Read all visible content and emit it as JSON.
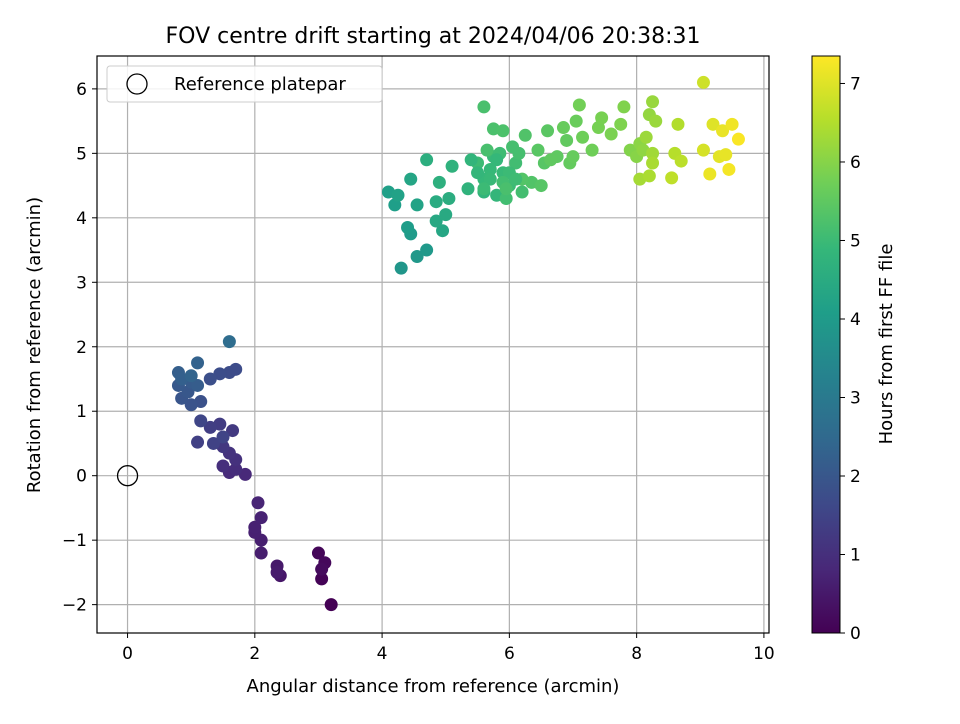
{
  "chart_data": {
    "type": "scatter",
    "title": "FOV centre drift starting at 2024/04/06 20:38:31",
    "xlabel": "Angular distance from reference (arcmin)",
    "ylabel": "Rotation from reference (arcmin)",
    "xlim": [
      -0.48,
      10.08
    ],
    "ylim": [
      -2.44,
      6.51
    ],
    "xticks": [
      0,
      2,
      4,
      6,
      8,
      10
    ],
    "yticks": [
      -2,
      -1,
      0,
      1,
      2,
      3,
      4,
      5,
      6
    ],
    "xtick_labels": [
      "0",
      "2",
      "4",
      "6",
      "8",
      "10"
    ],
    "ytick_labels": [
      "−2",
      "−1",
      "0",
      "1",
      "2",
      "3",
      "4",
      "5",
      "6"
    ],
    "grid": true,
    "legend": {
      "position": "top-left",
      "entries": [
        "Reference platepar"
      ]
    },
    "reference_point": {
      "x": 0,
      "y": 0,
      "label": "Reference platepar"
    },
    "colorbar": {
      "label": "Hours from first FF file",
      "min": 0,
      "max": 7.35,
      "ticks": [
        0,
        1,
        2,
        3,
        4,
        5,
        6,
        7
      ],
      "tick_labels": [
        "0",
        "1",
        "2",
        "3",
        "4",
        "5",
        "6",
        "7"
      ],
      "colormap": "viridis"
    },
    "colors": {
      "viridis": [
        "#440154",
        "#482878",
        "#3e4989",
        "#31688e",
        "#26828e",
        "#1f9e89",
        "#35b779",
        "#6ece58",
        "#b5de2b",
        "#fde725"
      ]
    },
    "series": [
      {
        "columns": [
          "x",
          "y",
          "hours"
        ],
        "points": [
          [
            3.2,
            -2.0,
            0.0
          ],
          [
            3.05,
            -1.6,
            0.05
          ],
          [
            3.0,
            -1.2,
            0.1
          ],
          [
            3.1,
            -1.35,
            0.15
          ],
          [
            3.05,
            -1.45,
            0.2
          ],
          [
            2.4,
            -1.55,
            0.45
          ],
          [
            2.35,
            -1.4,
            0.5
          ],
          [
            2.35,
            -1.5,
            0.55
          ],
          [
            2.1,
            -1.2,
            0.6
          ],
          [
            2.1,
            -1.0,
            0.62
          ],
          [
            2.0,
            -0.88,
            0.65
          ],
          [
            2.0,
            -0.8,
            0.68
          ],
          [
            2.1,
            -0.65,
            0.7
          ],
          [
            2.05,
            -0.42,
            0.75
          ],
          [
            1.85,
            0.02,
            0.85
          ],
          [
            1.6,
            0.05,
            0.9
          ],
          [
            1.7,
            0.1,
            0.95
          ],
          [
            1.5,
            0.15,
            1.0
          ],
          [
            1.7,
            0.25,
            1.05
          ],
          [
            1.6,
            0.35,
            1.1
          ],
          [
            1.5,
            0.45,
            1.2
          ],
          [
            1.65,
            0.7,
            1.25
          ],
          [
            1.45,
            0.8,
            1.3
          ],
          [
            1.3,
            0.75,
            1.35
          ],
          [
            1.1,
            0.52,
            1.4
          ],
          [
            1.35,
            0.5,
            1.45
          ],
          [
            1.5,
            0.6,
            1.5
          ],
          [
            1.15,
            0.85,
            1.55
          ],
          [
            1.6,
            1.6,
            1.7
          ],
          [
            1.7,
            1.65,
            1.72
          ],
          [
            1.45,
            1.58,
            1.75
          ],
          [
            1.3,
            1.5,
            1.78
          ],
          [
            1.15,
            1.15,
            1.85
          ],
          [
            1.0,
            1.1,
            1.9
          ],
          [
            0.85,
            1.2,
            1.95
          ],
          [
            0.95,
            1.3,
            2.0
          ],
          [
            0.8,
            1.4,
            2.05
          ],
          [
            1.0,
            1.45,
            2.1
          ],
          [
            1.1,
            1.4,
            2.15
          ],
          [
            0.8,
            1.6,
            2.2
          ],
          [
            0.85,
            1.5,
            2.25
          ],
          [
            1.1,
            1.75,
            2.3
          ],
          [
            1.0,
            1.55,
            2.35
          ],
          [
            1.6,
            2.08,
            2.6
          ],
          [
            4.3,
            3.22,
            3.85
          ],
          [
            4.55,
            3.4,
            3.9
          ],
          [
            4.7,
            3.5,
            3.95
          ],
          [
            4.45,
            3.75,
            4.0
          ],
          [
            4.4,
            3.85,
            4.05
          ],
          [
            4.2,
            4.2,
            4.1
          ],
          [
            4.1,
            4.4,
            4.15
          ],
          [
            4.25,
            4.35,
            4.2
          ],
          [
            4.55,
            4.2,
            4.25
          ],
          [
            4.45,
            4.6,
            4.3
          ],
          [
            4.95,
            3.8,
            4.35
          ],
          [
            4.85,
            3.95,
            4.4
          ],
          [
            5.0,
            4.05,
            4.45
          ],
          [
            4.85,
            4.25,
            4.5
          ],
          [
            5.05,
            4.3,
            4.55
          ],
          [
            4.7,
            4.9,
            4.6
          ],
          [
            4.9,
            4.55,
            4.65
          ],
          [
            5.1,
            4.8,
            4.7
          ],
          [
            5.35,
            4.45,
            4.75
          ],
          [
            5.6,
            4.4,
            4.8
          ],
          [
            5.8,
            4.35,
            4.85
          ],
          [
            5.6,
            4.6,
            4.9
          ],
          [
            5.7,
            4.75,
            4.92
          ],
          [
            5.9,
            4.7,
            4.95
          ],
          [
            5.75,
            4.95,
            4.98
          ],
          [
            6.0,
            4.5,
            5.0
          ],
          [
            5.5,
            4.85,
            5.02
          ],
          [
            5.85,
            5.0,
            5.05
          ],
          [
            6.1,
            4.85,
            5.08
          ],
          [
            5.95,
            4.3,
            5.1
          ],
          [
            6.2,
            4.4,
            5.12
          ],
          [
            6.05,
            5.1,
            5.15
          ],
          [
            5.65,
            5.05,
            5.18
          ],
          [
            5.6,
            5.72,
            5.2
          ],
          [
            5.75,
            5.38,
            5.22
          ],
          [
            5.9,
            5.35,
            5.25
          ],
          [
            6.25,
            5.28,
            5.3
          ],
          [
            6.35,
            4.55,
            5.32
          ],
          [
            6.2,
            4.6,
            5.35
          ],
          [
            6.5,
            4.5,
            5.38
          ],
          [
            6.55,
            4.85,
            5.4
          ],
          [
            6.45,
            5.05,
            5.42
          ],
          [
            6.6,
            5.35,
            5.45
          ],
          [
            6.75,
            4.95,
            5.5
          ],
          [
            6.65,
            4.9,
            5.52
          ],
          [
            6.9,
            5.2,
            5.55
          ],
          [
            6.95,
            4.85,
            5.58
          ],
          [
            7.0,
            4.95,
            5.6
          ],
          [
            6.85,
            5.4,
            5.62
          ],
          [
            7.05,
            5.5,
            5.65
          ],
          [
            7.15,
            5.25,
            5.7
          ],
          [
            7.3,
            5.05,
            5.72
          ],
          [
            7.1,
            5.75,
            5.75
          ],
          [
            7.4,
            5.4,
            5.8
          ],
          [
            7.45,
            5.55,
            5.82
          ],
          [
            7.6,
            5.3,
            5.85
          ],
          [
            7.75,
            5.45,
            5.9
          ],
          [
            7.8,
            5.72,
            5.92
          ],
          [
            7.9,
            5.05,
            5.95
          ],
          [
            8.0,
            4.95,
            6.0
          ],
          [
            8.05,
            5.15,
            6.05
          ],
          [
            8.1,
            5.05,
            6.1
          ],
          [
            8.2,
            5.6,
            6.15
          ],
          [
            8.25,
            5.8,
            6.2
          ],
          [
            8.3,
            5.5,
            6.22
          ],
          [
            8.15,
            5.25,
            6.25
          ],
          [
            8.25,
            5.0,
            6.3
          ],
          [
            8.05,
            4.6,
            6.35
          ],
          [
            8.25,
            4.85,
            6.4
          ],
          [
            8.2,
            4.65,
            6.42
          ],
          [
            8.65,
            5.45,
            6.5
          ],
          [
            8.6,
            5.0,
            6.55
          ],
          [
            8.7,
            4.88,
            6.6
          ],
          [
            8.55,
            4.62,
            6.65
          ],
          [
            9.05,
            6.1,
            6.8
          ],
          [
            9.05,
            5.05,
            6.9
          ],
          [
            9.2,
            5.45,
            7.0
          ],
          [
            9.3,
            4.95,
            7.05
          ],
          [
            9.4,
            4.98,
            7.1
          ],
          [
            9.35,
            5.35,
            7.12
          ],
          [
            9.15,
            4.68,
            7.15
          ],
          [
            9.5,
            5.45,
            7.2
          ],
          [
            9.45,
            4.75,
            7.25
          ],
          [
            9.6,
            5.22,
            7.3
          ],
          [
            5.8,
            4.9,
            4.9
          ],
          [
            5.7,
            4.6,
            4.95
          ],
          [
            6.0,
            4.7,
            5.0
          ],
          [
            6.1,
            4.6,
            5.05
          ],
          [
            5.9,
            4.55,
            5.1
          ],
          [
            5.5,
            4.7,
            4.85
          ],
          [
            6.15,
            5.0,
            5.15
          ],
          [
            5.95,
            4.45,
            5.2
          ],
          [
            5.6,
            4.45,
            5.0
          ],
          [
            5.4,
            4.9,
            4.8
          ]
        ]
      }
    ]
  }
}
